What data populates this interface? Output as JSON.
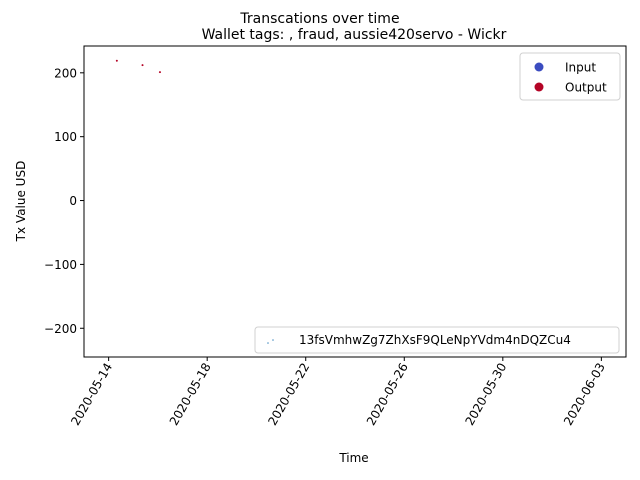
{
  "chart_data": {
    "type": "scatter",
    "suptitle": "Transcations over time",
    "title": "Wallet tags: , fraud, aussie420servo - Wickr",
    "xlabel": "Time",
    "ylabel": "Tx Value USD",
    "x_ticks": [
      "2020-05-14",
      "2020-05-18",
      "2020-05-22",
      "2020-05-26",
      "2020-05-30",
      "2020-06-03"
    ],
    "y_ticks": [
      -200,
      -100,
      0,
      100,
      200
    ],
    "xlim": [
      "2020-05-13 00:00",
      "2020-06-04 00:00"
    ],
    "ylim": [
      -245,
      242
    ],
    "grid": false,
    "legend_position": "top-right",
    "legend": [
      {
        "label": "Input",
        "color": "#3b4cc0"
      },
      {
        "label": "Output",
        "color": "#b40426"
      }
    ],
    "address_legend": {
      "label": "13fsVmhwZg7ZhXsF9QLeNpYVdm4nDQZCu4",
      "position": "lower-right"
    },
    "points": [
      {
        "x": "2020-05-14 08:00",
        "y": 219,
        "type": "Output",
        "color": "#b40426"
      },
      {
        "x": "2020-05-15 09:00",
        "y": 212,
        "type": "Output",
        "color": "#b40426"
      },
      {
        "x": "2020-05-16 02:00",
        "y": 201,
        "type": "Output",
        "color": "#b40426"
      }
    ]
  }
}
